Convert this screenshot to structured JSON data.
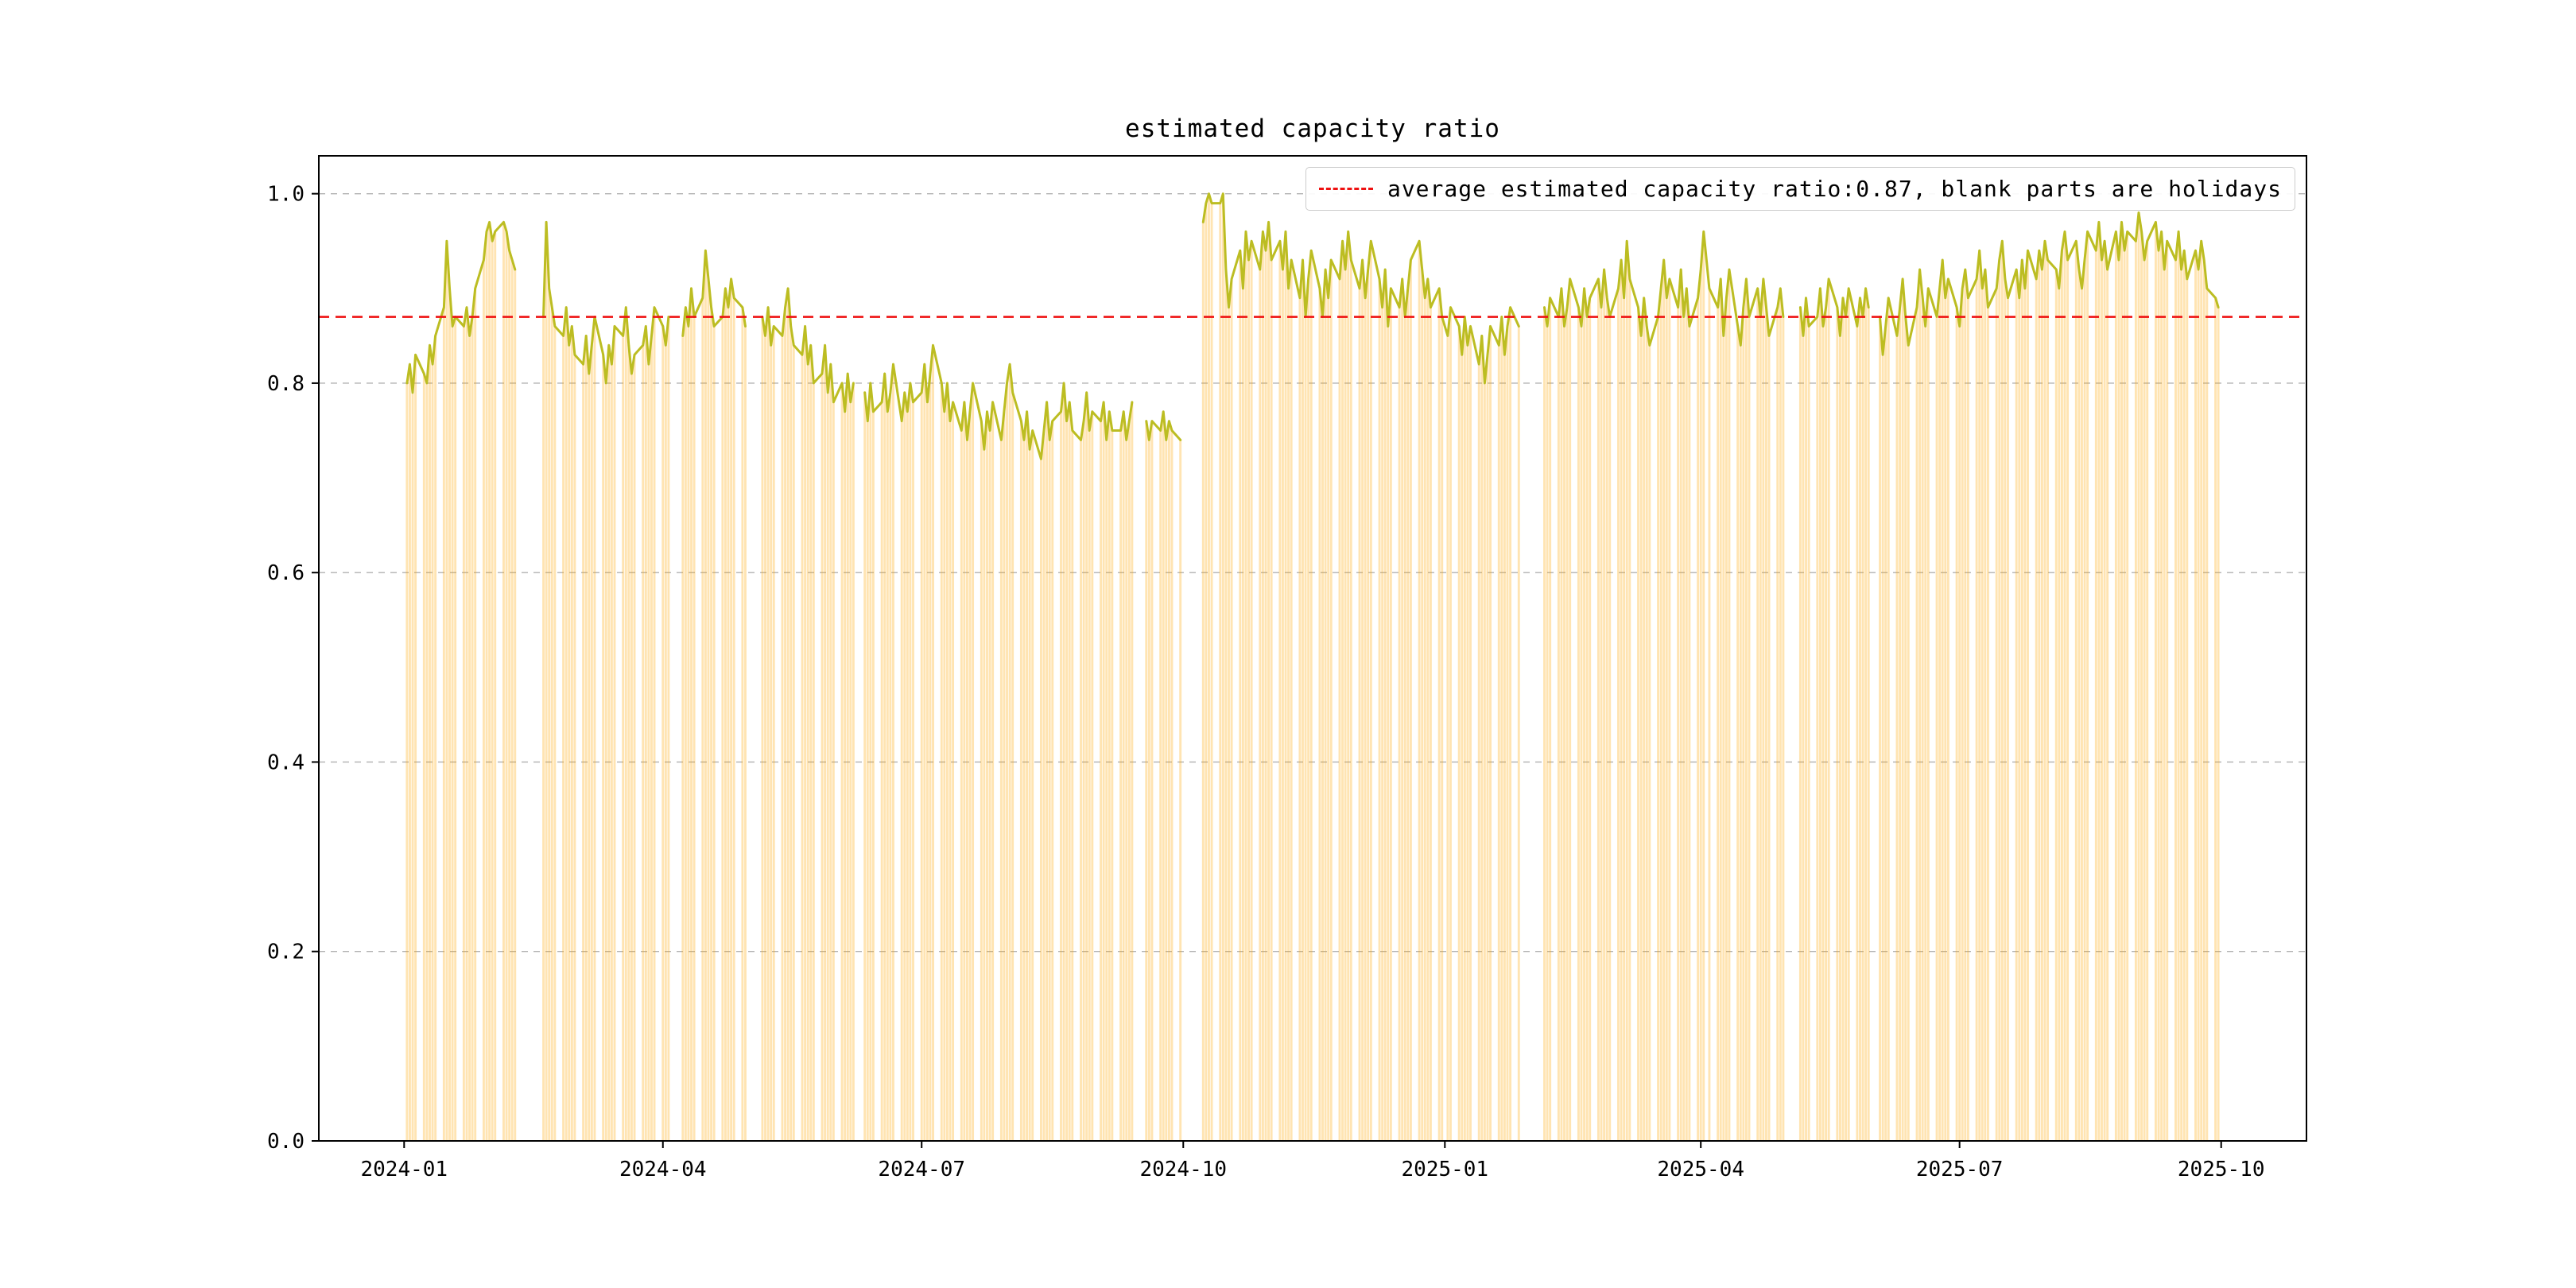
{
  "chart_data": {
    "type": "bar+line",
    "title": "estimated capacity ratio",
    "xlabel": "",
    "ylabel": "",
    "ylim": [
      0,
      1.04
    ],
    "grid": "horizontal dashed",
    "legend_position": "upper right",
    "legend": [
      "average estimated capacity ratio:0.87, blank parts are holidays"
    ],
    "average_line": {
      "value": 0.87,
      "style": "dashed",
      "color": "#ee1111"
    },
    "colors": {
      "bars": "#ffa500",
      "bars_alpha": 0.3,
      "line": "#bcbd22",
      "grid": "#b0b0b0"
    },
    "y_ticks": [
      {
        "label": "0.0",
        "value": 0.0
      },
      {
        "label": "0.2",
        "value": 0.2
      },
      {
        "label": "0.4",
        "value": 0.4
      },
      {
        "label": "0.6",
        "value": 0.6
      },
      {
        "label": "0.8",
        "value": 0.8
      },
      {
        "label": "1.0",
        "value": 1.0
      }
    ],
    "x_ticks": [
      {
        "label": "2024-01",
        "day": 0
      },
      {
        "label": "2024-04",
        "day": 91
      },
      {
        "label": "2024-07",
        "day": 182
      },
      {
        "label": "2024-10",
        "day": 274
      },
      {
        "label": "2025-01",
        "day": 366
      },
      {
        "label": "2025-04",
        "day": 456
      },
      {
        "label": "2025-07",
        "day": 547
      },
      {
        "label": "2025-10",
        "day": 639
      }
    ],
    "series": [
      {
        "name": "daily estimated capacity ratio (weekday bars with line overlay, blanks are holidays)",
        "start_monday": "2024-01-01",
        "weekday_values_by_week": [
          [
            null,
            0.8,
            0.82,
            0.79,
            0.83
          ],
          [
            0.81,
            0.8,
            0.84,
            0.82,
            0.85
          ],
          [
            0.88,
            0.95,
            0.9,
            0.86,
            0.87
          ],
          [
            0.86,
            0.88,
            0.85,
            0.87,
            0.9
          ],
          [
            0.93,
            0.96,
            0.97,
            0.95,
            0.96
          ],
          [
            0.97,
            0.96,
            0.94,
            0.93,
            0.92
          ],
          [
            null,
            null,
            null,
            null,
            null
          ],
          [
            0.87,
            0.97,
            0.9,
            0.88,
            0.86
          ],
          [
            0.85,
            0.88,
            0.84,
            0.86,
            0.83
          ],
          [
            0.82,
            0.85,
            0.81,
            0.84,
            0.87
          ],
          [
            0.83,
            0.8,
            0.84,
            0.82,
            0.86
          ],
          [
            0.85,
            0.88,
            0.84,
            0.81,
            0.83
          ],
          [
            0.84,
            0.86,
            0.82,
            0.85,
            0.88
          ],
          [
            0.86,
            0.84,
            0.87,
            null,
            null
          ],
          [
            0.85,
            0.88,
            0.86,
            0.9,
            0.87
          ],
          [
            0.89,
            0.94,
            0.91,
            0.88,
            0.86
          ],
          [
            0.87,
            0.9,
            0.88,
            0.91,
            0.89
          ],
          [
            0.88,
            0.86,
            null,
            null,
            null
          ],
          [
            0.87,
            0.85,
            0.88,
            0.84,
            0.86
          ],
          [
            0.85,
            0.88,
            0.9,
            0.86,
            0.84
          ],
          [
            0.83,
            0.86,
            0.82,
            0.84,
            0.8
          ],
          [
            0.81,
            0.84,
            0.79,
            0.82,
            0.78
          ],
          [
            0.8,
            0.77,
            0.81,
            0.78,
            0.8
          ],
          [
            null,
            0.79,
            0.76,
            0.8,
            0.77
          ],
          [
            0.78,
            0.81,
            0.77,
            0.79,
            0.82
          ],
          [
            0.76,
            0.79,
            0.77,
            0.8,
            0.78
          ],
          [
            0.79,
            0.82,
            0.78,
            0.81,
            0.84
          ],
          [
            0.8,
            0.77,
            0.8,
            0.76,
            0.78
          ],
          [
            0.75,
            0.78,
            0.74,
            0.77,
            0.8
          ],
          [
            0.76,
            0.73,
            0.77,
            0.75,
            0.78
          ],
          [
            0.74,
            0.77,
            0.8,
            0.82,
            0.79
          ],
          [
            0.76,
            0.74,
            0.77,
            0.73,
            0.75
          ],
          [
            0.72,
            0.75,
            0.78,
            0.74,
            0.76
          ],
          [
            0.77,
            0.8,
            0.76,
            0.78,
            0.75
          ],
          [
            0.74,
            0.76,
            0.79,
            0.75,
            0.77
          ],
          [
            0.76,
            0.78,
            0.74,
            0.77,
            0.75
          ],
          [
            0.75,
            0.77,
            0.74,
            0.76,
            0.78
          ],
          [
            null,
            null,
            0.76,
            0.74,
            0.76
          ],
          [
            0.75,
            0.77,
            0.74,
            0.76,
            0.75
          ],
          [
            0.74,
            null,
            null,
            null,
            null
          ],
          [
            null,
            0.97,
            0.99,
            1.0,
            0.99
          ],
          [
            0.99,
            1.0,
            0.92,
            0.88,
            0.91
          ],
          [
            0.94,
            0.9,
            0.96,
            0.93,
            0.95
          ],
          [
            0.92,
            0.96,
            0.94,
            0.97,
            0.93
          ],
          [
            0.95,
            0.92,
            0.96,
            0.9,
            0.93
          ],
          [
            0.89,
            0.93,
            0.87,
            0.91,
            0.94
          ],
          [
            0.9,
            0.87,
            0.92,
            0.89,
            0.93
          ],
          [
            0.91,
            0.95,
            0.92,
            0.96,
            0.93
          ],
          [
            0.9,
            0.93,
            0.89,
            0.92,
            0.95
          ],
          [
            0.91,
            0.88,
            0.92,
            0.86,
            0.9
          ],
          [
            0.88,
            0.91,
            0.87,
            0.9,
            0.93
          ],
          [
            0.95,
            0.92,
            0.89,
            0.91,
            0.88
          ],
          [
            0.9,
            0.87,
            null,
            0.85,
            0.88
          ],
          [
            0.86,
            0.83,
            0.87,
            0.84,
            0.86
          ],
          [
            0.82,
            0.85,
            0.8,
            0.83,
            0.86
          ],
          [
            0.84,
            0.87,
            0.83,
            0.86,
            0.88
          ],
          [
            0.86,
            null,
            null,
            null,
            null
          ],
          [
            null,
            null,
            0.88,
            0.86,
            0.89
          ],
          [
            0.87,
            0.9,
            0.86,
            0.88,
            0.91
          ],
          [
            0.88,
            0.86,
            0.9,
            0.87,
            0.89
          ],
          [
            0.91,
            0.88,
            0.92,
            0.89,
            0.87
          ],
          [
            0.9,
            0.93,
            0.89,
            0.95,
            0.91
          ],
          [
            0.88,
            0.85,
            0.89,
            0.86,
            0.84
          ],
          [
            0.87,
            0.9,
            0.93,
            0.89,
            0.91
          ],
          [
            0.88,
            0.92,
            0.87,
            0.9,
            0.86
          ],
          [
            0.89,
            0.92,
            0.96,
            null,
            0.9
          ],
          [
            0.88,
            0.91,
            0.85,
            0.89,
            0.92
          ],
          [
            0.86,
            0.84,
            0.88,
            0.91,
            0.87
          ],
          [
            0.9,
            0.87,
            0.91,
            0.88,
            0.85
          ],
          [
            0.88,
            0.9,
            0.87,
            null,
            null
          ],
          [
            null,
            0.88,
            0.85,
            0.89,
            0.86
          ],
          [
            0.87,
            0.9,
            0.86,
            0.88,
            0.91
          ],
          [
            0.88,
            0.85,
            0.89,
            0.87,
            0.9
          ],
          [
            0.86,
            0.89,
            0.87,
            0.9,
            0.88
          ],
          [
            null,
            0.87,
            0.83,
            0.86,
            0.89
          ],
          [
            0.85,
            0.88,
            0.91,
            0.87,
            0.84
          ],
          [
            0.88,
            0.92,
            0.89,
            0.86,
            0.9
          ],
          [
            0.87,
            0.9,
            0.93,
            0.89,
            0.91
          ],
          [
            0.88,
            0.86,
            0.9,
            0.92,
            0.89
          ],
          [
            0.91,
            0.94,
            0.9,
            0.92,
            0.88
          ],
          [
            0.9,
            0.93,
            0.95,
            0.91,
            0.89
          ],
          [
            0.92,
            0.89,
            0.93,
            0.9,
            0.94
          ],
          [
            0.91,
            0.94,
            0.92,
            0.95,
            0.93
          ],
          [
            0.92,
            0.9,
            0.94,
            0.96,
            0.93
          ],
          [
            0.95,
            0.92,
            0.9,
            0.93,
            0.96
          ],
          [
            0.94,
            0.97,
            0.93,
            0.95,
            0.92
          ],
          [
            0.96,
            0.93,
            0.97,
            0.94,
            0.96
          ],
          [
            0.95,
            0.98,
            0.96,
            0.93,
            0.95
          ],
          [
            0.97,
            0.94,
            0.96,
            0.92,
            0.95
          ],
          [
            0.93,
            0.96,
            0.92,
            0.94,
            0.91
          ],
          [
            0.94,
            0.92,
            0.95,
            0.93,
            0.9
          ],
          [
            0.89,
            0.88,
            null,
            null,
            null
          ]
        ]
      }
    ]
  }
}
